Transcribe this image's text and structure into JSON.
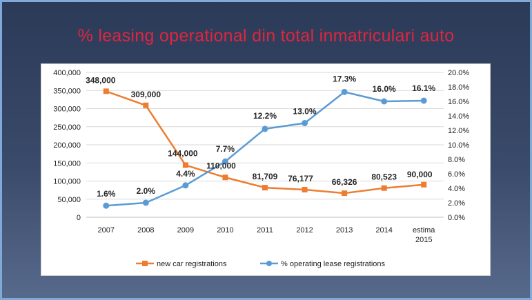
{
  "slide": {
    "title": "% leasing operational din total inmatriculari auto"
  },
  "colors": {
    "series1": "#ed7d31",
    "series2": "#5b9bd5",
    "title": "#e0253f"
  },
  "chart_data": {
    "type": "line",
    "title": "",
    "categories": [
      "2007",
      "2008",
      "2009",
      "2010",
      "2011",
      "2012",
      "2013",
      "2014",
      "estima 2015"
    ],
    "series": [
      {
        "name": "new car registrations",
        "axis": "left",
        "values": [
          348000,
          309000,
          144000,
          110000,
          81709,
          76177,
          66326,
          80523,
          90000
        ],
        "labels": [
          "348,000",
          "309,000",
          "144,000",
          "110,000",
          "81,709",
          "76,177",
          "66,326",
          "80,523",
          "90,000"
        ]
      },
      {
        "name": "% operating lease registrations",
        "axis": "right",
        "values": [
          1.6,
          2.0,
          4.4,
          7.7,
          12.2,
          13.0,
          17.3,
          16.0,
          16.1
        ],
        "labels": [
          "1.6%",
          "2.0%",
          "4.4%",
          "7.7%",
          "12.2%",
          "13.0%",
          "17.3%",
          "16.0%",
          "16.1%"
        ]
      }
    ],
    "y_left": {
      "range": [
        0,
        400000
      ],
      "ticks": [
        "0",
        "50,000",
        "100,000",
        "150,000",
        "200,000",
        "250,000",
        "300,000",
        "350,000",
        "400,000"
      ]
    },
    "y_right": {
      "range": [
        0,
        20
      ],
      "ticks": [
        "0.0%",
        "2.0%",
        "4.0%",
        "6.0%",
        "8.0%",
        "10.0%",
        "12.0%",
        "14.0%",
        "16.0%",
        "18.0%",
        "20.0%"
      ]
    },
    "grid": true,
    "legend": "bottom"
  }
}
